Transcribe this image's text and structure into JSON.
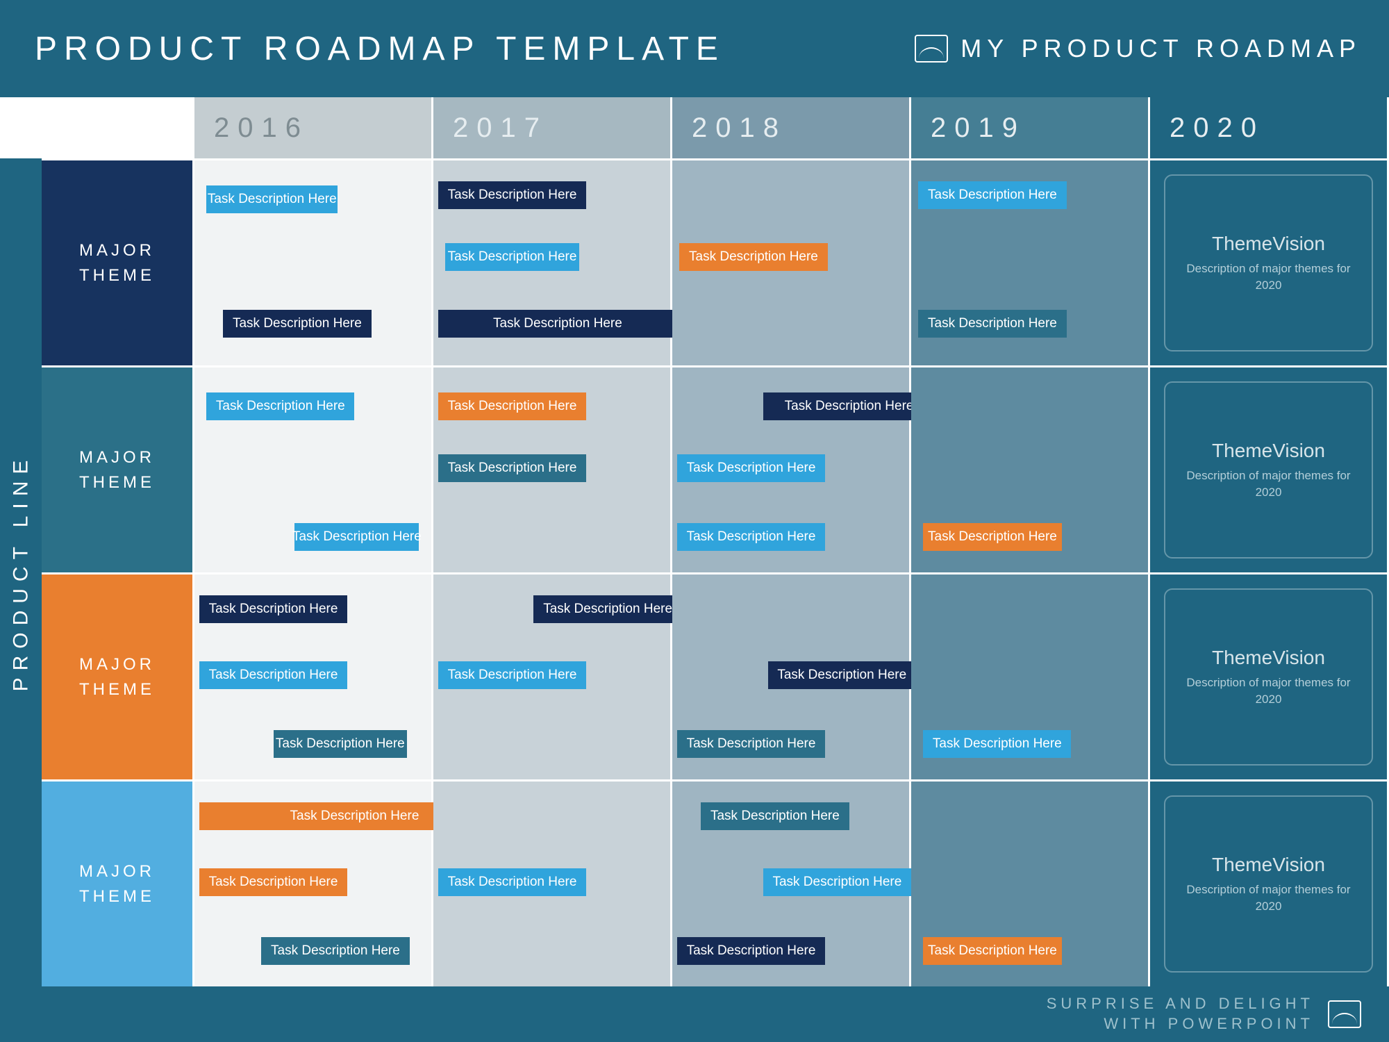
{
  "header": {
    "title": "PRODUCT ROADMAP TEMPLATE",
    "brand": "MY PRODUCT ROADMAP"
  },
  "product_line_label": "PRODUCT LINE",
  "years": [
    "2016",
    "2017",
    "2018",
    "2019",
    "2020"
  ],
  "themes": [
    {
      "label": "MAJOR\nTHEME",
      "color": "#17335f"
    },
    {
      "label": "MAJOR\nTHEME",
      "color": "#2b7088"
    },
    {
      "label": "MAJOR\nTHEME",
      "color": "#e97f2f"
    },
    {
      "label": "MAJOR\nTHEME",
      "color": "#52aee0"
    }
  ],
  "colors": {
    "task_blue": "#30a4dc",
    "task_navy": "#152a54",
    "task_orange": "#e97f2f",
    "task_teal": "#2b6f89"
  },
  "vision": {
    "title": "ThemeVision",
    "desc": "Description of major themes for 2020"
  },
  "tasks": [
    {
      "row": 0,
      "col_start": 0.05,
      "span": 0.55,
      "y": 0.12,
      "color": "task_blue",
      "label": "Task Description Here"
    },
    {
      "row": 0,
      "col_start": 1.02,
      "span": 0.62,
      "y": 0.1,
      "color": "task_navy",
      "label": "Task Description Here"
    },
    {
      "row": 0,
      "col_start": 1.05,
      "span": 0.56,
      "y": 0.4,
      "color": "task_blue",
      "label": "Task Description Here"
    },
    {
      "row": 0,
      "col_start": 2.03,
      "span": 0.62,
      "y": 0.4,
      "color": "task_orange",
      "label": "Task Description Here"
    },
    {
      "row": 0,
      "col_start": 3.03,
      "span": 0.62,
      "y": 0.1,
      "color": "task_blue",
      "label": "Task Description Here"
    },
    {
      "row": 0,
      "col_start": 0.12,
      "span": 0.62,
      "y": 0.72,
      "color": "task_navy",
      "label": "Task Description Here"
    },
    {
      "row": 0,
      "col_start": 1.02,
      "span": 1.0,
      "y": 0.72,
      "color": "task_navy",
      "label": "Task Description Here"
    },
    {
      "row": 0,
      "col_start": 3.03,
      "span": 0.62,
      "y": 0.72,
      "color": "task_teal",
      "label": "Task Description Here"
    },
    {
      "row": 1,
      "col_start": 0.05,
      "span": 0.62,
      "y": 0.12,
      "color": "task_blue",
      "label": "Task Description Here"
    },
    {
      "row": 1,
      "col_start": 1.02,
      "span": 0.62,
      "y": 0.12,
      "color": "task_orange",
      "label": "Task Description Here"
    },
    {
      "row": 1,
      "col_start": 2.38,
      "span": 0.72,
      "y": 0.12,
      "color": "task_navy",
      "label": "Task Description Here"
    },
    {
      "row": 1,
      "col_start": 1.02,
      "span": 0.62,
      "y": 0.42,
      "color": "task_teal",
      "label": "Task Description Here"
    },
    {
      "row": 1,
      "col_start": 2.02,
      "span": 0.62,
      "y": 0.42,
      "color": "task_blue",
      "label": "Task Description Here"
    },
    {
      "row": 1,
      "col_start": 0.42,
      "span": 0.52,
      "y": 0.75,
      "color": "task_blue",
      "label": "Task Description Here"
    },
    {
      "row": 1,
      "col_start": 2.02,
      "span": 0.62,
      "y": 0.75,
      "color": "task_blue",
      "label": "Task Description Here"
    },
    {
      "row": 1,
      "col_start": 3.05,
      "span": 0.58,
      "y": 0.75,
      "color": "task_orange",
      "label": "Task Description Here"
    },
    {
      "row": 2,
      "col_start": 0.02,
      "span": 0.62,
      "y": 0.1,
      "color": "task_navy",
      "label": "Task Description Here"
    },
    {
      "row": 2,
      "col_start": 1.42,
      "span": 0.62,
      "y": 0.1,
      "color": "task_navy",
      "label": "Task Description Here"
    },
    {
      "row": 2,
      "col_start": 0.02,
      "span": 0.62,
      "y": 0.42,
      "color": "task_blue",
      "label": "Task Description Here"
    },
    {
      "row": 2,
      "col_start": 1.02,
      "span": 0.62,
      "y": 0.42,
      "color": "task_blue",
      "label": "Task Description Here"
    },
    {
      "row": 2,
      "col_start": 2.4,
      "span": 0.62,
      "y": 0.42,
      "color": "task_navy",
      "label": "Task Description Here"
    },
    {
      "row": 2,
      "col_start": 0.33,
      "span": 0.56,
      "y": 0.75,
      "color": "task_teal",
      "label": "Task Description Here"
    },
    {
      "row": 2,
      "col_start": 2.02,
      "span": 0.62,
      "y": 0.75,
      "color": "task_teal",
      "label": "Task Description Here"
    },
    {
      "row": 2,
      "col_start": 3.05,
      "span": 0.62,
      "y": 0.75,
      "color": "task_blue",
      "label": "Task Description Here"
    },
    {
      "row": 3,
      "col_start": 0.02,
      "span": 1.3,
      "y": 0.1,
      "color": "task_orange",
      "label": "Task Description Here"
    },
    {
      "row": 3,
      "col_start": 2.12,
      "span": 0.62,
      "y": 0.1,
      "color": "task_teal",
      "label": "Task Description Here"
    },
    {
      "row": 3,
      "col_start": 0.02,
      "span": 0.62,
      "y": 0.42,
      "color": "task_orange",
      "label": "Task Description Here"
    },
    {
      "row": 3,
      "col_start": 1.02,
      "span": 0.62,
      "y": 0.42,
      "color": "task_blue",
      "label": "Task Description Here"
    },
    {
      "row": 3,
      "col_start": 2.38,
      "span": 0.62,
      "y": 0.42,
      "color": "task_blue",
      "label": "Task Description Here"
    },
    {
      "row": 3,
      "col_start": 0.28,
      "span": 0.62,
      "y": 0.75,
      "color": "task_teal",
      "label": "Task Description Here"
    },
    {
      "row": 3,
      "col_start": 2.02,
      "span": 0.62,
      "y": 0.75,
      "color": "task_navy",
      "label": "Task Description Here"
    },
    {
      "row": 3,
      "col_start": 3.05,
      "span": 0.58,
      "y": 0.75,
      "color": "task_orange",
      "label": "Task Description Here"
    }
  ],
  "footer": {
    "line1": "SURPRISE AND DELIGHT",
    "line2": "WITH POWERPOINT"
  }
}
